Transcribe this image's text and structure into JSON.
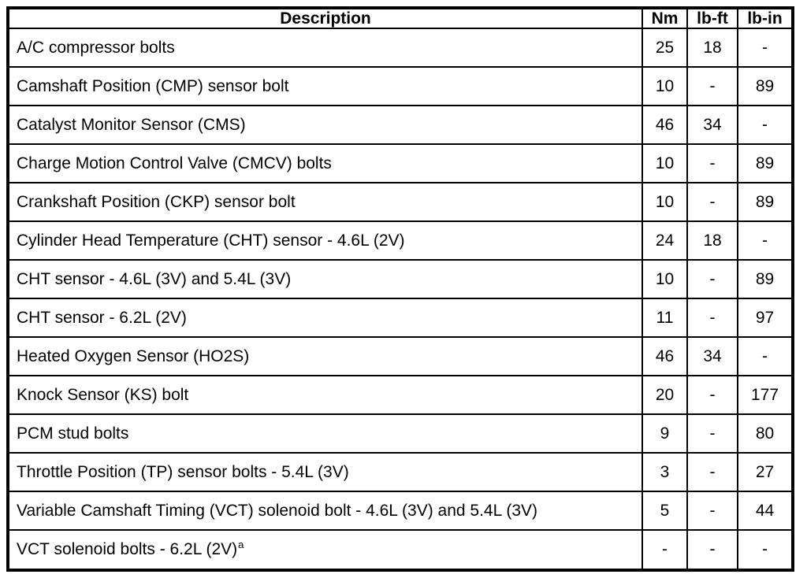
{
  "colors": {
    "background": "#ffffff",
    "border": "#000000",
    "text": "#000000"
  },
  "table": {
    "headers": {
      "description": "Description",
      "nm": "Nm",
      "lbft": "lb-ft",
      "lbin": "lb-in"
    },
    "rows": [
      {
        "description": "A/C compressor bolts",
        "nm": "25",
        "lbft": "18",
        "lbin": "-"
      },
      {
        "description": "Camshaft Position (CMP) sensor bolt",
        "nm": "10",
        "lbft": "-",
        "lbin": "89"
      },
      {
        "description": "Catalyst Monitor Sensor (CMS)",
        "nm": "46",
        "lbft": "34",
        "lbin": "-"
      },
      {
        "description": "Charge Motion Control Valve (CMCV) bolts",
        "nm": "10",
        "lbft": "-",
        "lbin": "89"
      },
      {
        "description": "Crankshaft Position (CKP) sensor bolt",
        "nm": "10",
        "lbft": "-",
        "lbin": "89"
      },
      {
        "description": "Cylinder Head Temperature (CHT) sensor - 4.6L (2V)",
        "nm": "24",
        "lbft": "18",
        "lbin": "-"
      },
      {
        "description": "CHT sensor - 4.6L (3V) and 5.4L (3V)",
        "nm": "10",
        "lbft": "-",
        "lbin": "89"
      },
      {
        "description": "CHT sensor - 6.2L (2V)",
        "nm": "11",
        "lbft": "-",
        "lbin": "97"
      },
      {
        "description": "Heated Oxygen Sensor (HO2S)",
        "nm": "46",
        "lbft": "34",
        "lbin": "-"
      },
      {
        "description": "Knock Sensor (KS) bolt",
        "nm": "20",
        "lbft": "-",
        "lbin": "177"
      },
      {
        "description": "PCM stud bolts",
        "nm": "9",
        "lbft": "-",
        "lbin": "80"
      },
      {
        "description": "Throttle Position (TP) sensor bolts - 5.4L (3V)",
        "nm": "3",
        "lbft": "-",
        "lbin": "27"
      },
      {
        "description": "Variable Camshaft Timing (VCT) solenoid bolt - 4.6L (3V) and 5.4L (3V)",
        "nm": "5",
        "lbft": "-",
        "lbin": "44"
      },
      {
        "description": "VCT solenoid bolts - 6.2L (2V)",
        "footnote": "a",
        "nm": "-",
        "lbft": "-",
        "lbin": "-"
      }
    ]
  }
}
